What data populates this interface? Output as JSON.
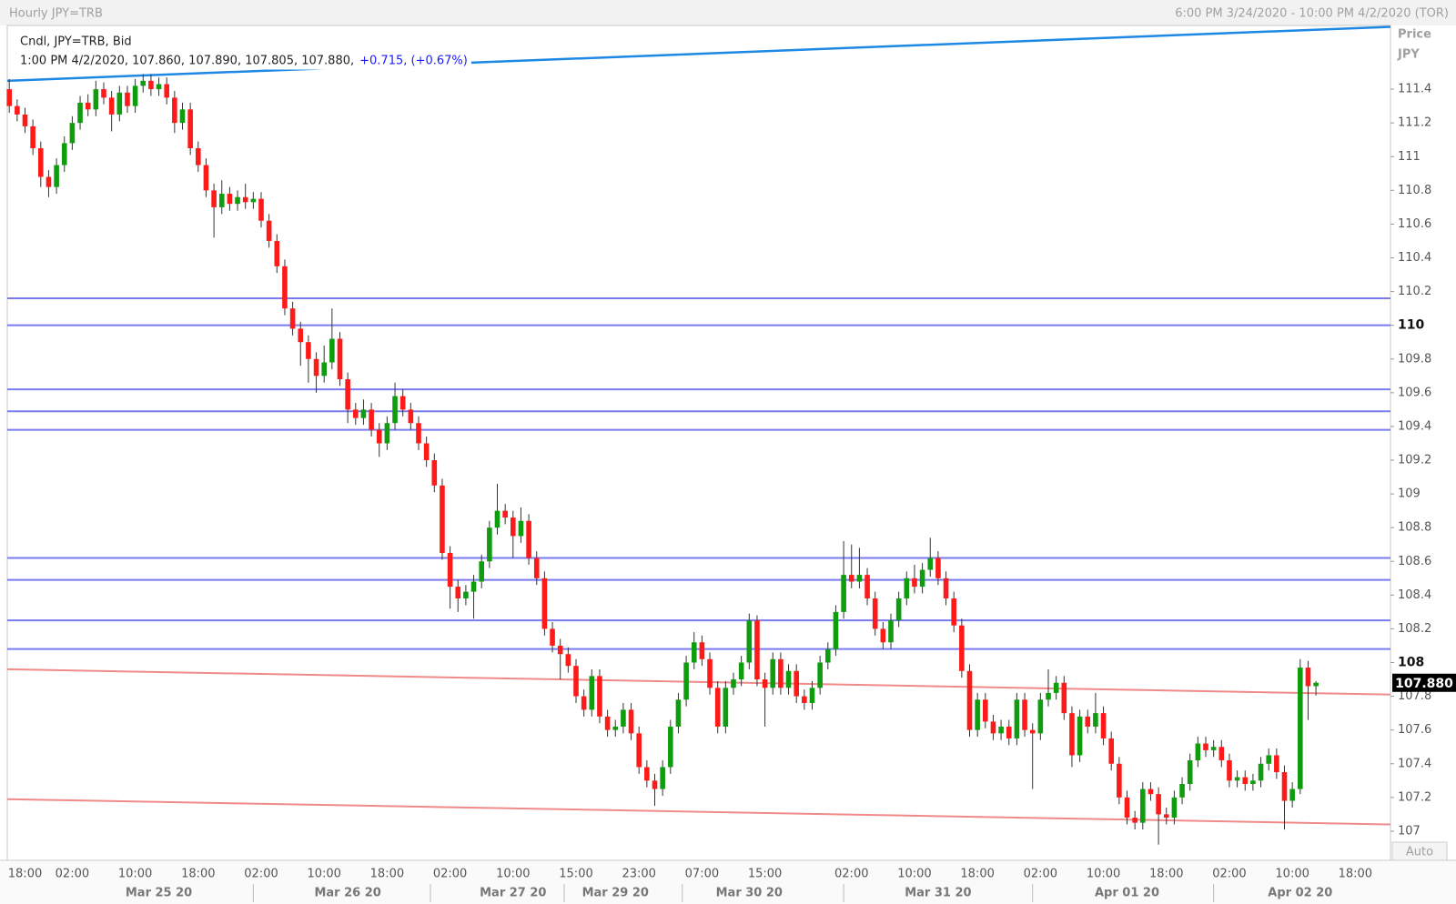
{
  "chart_data": {
    "type": "candlestick",
    "title": "Hourly JPY=TRB",
    "range_label": "6:00 PM 3/24/2020 - 10:00 PM 4/2/2020 (TOR)",
    "axis_label": "Price",
    "axis_unit": "JPY",
    "scale_mode": "Auto",
    "legend": {
      "line1": "Cndl, JPY=TRB, Bid",
      "line2": "1:00 PM 4/2/2020, 107.860, 107.890, 107.805, 107.880,",
      "change": "+0.715, (+0.67%)",
      "change_color": "#1a1aff"
    },
    "last_price": {
      "value": 107.88,
      "label": "107.880"
    },
    "up_color": "#0f9d0f",
    "down_color": "#ff1a1a",
    "ylim": [
      106.827,
      111.778
    ],
    "yticks": [
      107,
      107.2,
      107.4,
      107.6,
      107.8,
      108,
      108.2,
      108.4,
      108.6,
      108.8,
      109,
      109.2,
      109.4,
      109.6,
      109.8,
      110,
      110.2,
      110.4,
      110.6,
      110.8,
      111,
      111.2,
      111.4
    ],
    "levels": [
      110.16,
      110.0,
      109.62,
      109.49,
      109.38,
      108.62,
      108.49,
      108.25,
      108.08
    ],
    "level_color": "#7a7af0",
    "trend_lines": [
      {
        "color": "#1e88e5",
        "values": [
          111.45,
          111.77
        ]
      },
      {
        "color": "#f08a8a",
        "values": [
          107.96,
          107.81
        ]
      },
      {
        "color": "#f08a8a",
        "values": [
          107.19,
          107.04
        ]
      }
    ],
    "categories": [
      null,
      null,
      "18:00",
      null,
      null,
      null,
      null,
      null,
      "02:00",
      null,
      null,
      null,
      null,
      null,
      null,
      null,
      "10:00",
      null,
      null,
      null,
      null,
      null,
      null,
      null,
      "18:00",
      null,
      null,
      null,
      null,
      null,
      null,
      null,
      "02:00",
      null,
      null,
      null,
      null,
      null,
      null,
      null,
      "10:00",
      null,
      null,
      null,
      null,
      null,
      null,
      null,
      "18:00",
      null,
      null,
      null,
      null,
      null,
      null,
      null,
      "02:00",
      null,
      null,
      null,
      null,
      null,
      null,
      null,
      "10:00",
      null,
      null,
      null,
      null,
      null,
      null,
      null,
      "15:00",
      null,
      null,
      null,
      null,
      null,
      null,
      null,
      "23:00",
      null,
      null,
      null,
      null,
      null,
      null,
      null,
      "07:00",
      null,
      null,
      null,
      null,
      null,
      null,
      null,
      "15:00",
      null,
      null,
      null,
      null,
      null,
      null,
      null,
      null,
      null,
      null,
      "02:00",
      null,
      null,
      null,
      null,
      null,
      null,
      null,
      "10:00",
      null,
      null,
      null,
      null,
      null,
      null,
      null,
      "18:00",
      null,
      null,
      null,
      null,
      null,
      null,
      null,
      "02:00",
      null,
      null,
      null,
      null,
      null,
      null,
      null,
      "10:00",
      null,
      null,
      null,
      null,
      null,
      null,
      null,
      "18:00",
      null,
      null,
      null,
      null,
      null,
      null,
      null,
      "02:00",
      null,
      null,
      null,
      null,
      null,
      null,
      null,
      "10:00",
      null,
      null,
      null,
      null,
      null,
      null,
      null,
      "18:00",
      null,
      null,
      null,
      null
    ],
    "date_categories": [
      null,
      null,
      null,
      null,
      null,
      null,
      null,
      null,
      null,
      null,
      null,
      null,
      null,
      null,
      null,
      null,
      null,
      null,
      null,
      "Mar 25 20",
      null,
      null,
      null,
      null,
      null,
      null,
      null,
      null,
      null,
      null,
      null,
      null,
      null,
      null,
      null,
      null,
      null,
      null,
      null,
      null,
      null,
      null,
      null,
      "Mar 26 20",
      null,
      null,
      null,
      null,
      null,
      null,
      null,
      null,
      null,
      null,
      null,
      null,
      null,
      null,
      null,
      null,
      null,
      null,
      null,
      null,
      "Mar 27 20",
      null,
      null,
      null,
      null,
      null,
      null,
      null,
      null,
      null,
      null,
      null,
      null,
      "Mar 29 20",
      null,
      null,
      null,
      null,
      null,
      null,
      null,
      null,
      null,
      null,
      null,
      null,
      null,
      null,
      null,
      null,
      "Mar 30 20",
      null,
      null,
      null,
      null,
      null,
      null,
      null,
      null,
      null,
      null,
      null,
      null,
      null,
      null,
      null,
      null,
      null,
      null,
      null,
      null,
      null,
      null,
      null,
      "Mar 31 20",
      null,
      null,
      null,
      null,
      null,
      null,
      null,
      null,
      null,
      null,
      null,
      null,
      null,
      null,
      null,
      null,
      null,
      null,
      null,
      null,
      null,
      null,
      null,
      "Apr 01 20",
      null,
      null,
      null,
      null,
      null,
      null,
      null,
      null,
      null,
      null,
      null,
      null,
      null,
      null,
      null,
      null,
      null,
      null,
      null,
      null,
      null,
      "Apr 02 20",
      null,
      null,
      null,
      null,
      null,
      null,
      null,
      null,
      null,
      null,
      null
    ],
    "ohlc": [
      [
        111.4,
        111.46,
        111.26,
        111.3
      ],
      [
        111.3,
        111.34,
        111.21,
        111.25
      ],
      [
        111.25,
        111.29,
        111.14,
        111.18
      ],
      [
        111.18,
        111.22,
        111.01,
        111.05
      ],
      [
        111.05,
        111.09,
        110.82,
        110.88
      ],
      [
        110.88,
        110.92,
        110.76,
        110.82
      ],
      [
        110.82,
        110.99,
        110.78,
        110.95
      ],
      [
        110.95,
        111.12,
        110.91,
        111.08
      ],
      [
        111.08,
        111.24,
        111.04,
        111.2
      ],
      [
        111.2,
        111.36,
        111.16,
        111.32
      ],
      [
        111.32,
        111.37,
        111.24,
        111.28
      ],
      [
        111.28,
        111.45,
        111.24,
        111.4
      ],
      [
        111.4,
        111.44,
        111.31,
        111.35
      ],
      [
        111.35,
        111.39,
        111.15,
        111.25
      ],
      [
        111.25,
        111.42,
        111.21,
        111.38
      ],
      [
        111.38,
        111.42,
        111.26,
        111.3
      ],
      [
        111.3,
        111.46,
        111.26,
        111.42
      ],
      [
        111.42,
        111.49,
        111.38,
        111.45
      ],
      [
        111.45,
        111.49,
        111.36,
        111.4
      ],
      [
        111.4,
        111.47,
        111.36,
        111.43
      ],
      [
        111.43,
        111.47,
        111.31,
        111.35
      ],
      [
        111.35,
        111.39,
        111.14,
        111.2
      ],
      [
        111.2,
        111.32,
        111.16,
        111.28
      ],
      [
        111.28,
        111.32,
        111.01,
        111.05
      ],
      [
        111.05,
        111.09,
        110.91,
        110.95
      ],
      [
        110.95,
        110.99,
        110.76,
        110.8
      ],
      [
        110.8,
        110.84,
        110.52,
        110.7
      ],
      [
        110.7,
        110.86,
        110.66,
        110.78
      ],
      [
        110.78,
        110.82,
        110.68,
        110.72
      ],
      [
        110.72,
        110.8,
        110.68,
        110.76
      ],
      [
        110.76,
        110.84,
        110.69,
        110.73
      ],
      [
        110.73,
        110.79,
        110.69,
        110.75
      ],
      [
        110.75,
        110.79,
        110.58,
        110.62
      ],
      [
        110.62,
        110.66,
        110.46,
        110.5
      ],
      [
        110.5,
        110.54,
        110.31,
        110.35
      ],
      [
        110.35,
        110.39,
        110.06,
        110.1
      ],
      [
        110.1,
        110.14,
        109.94,
        109.98
      ],
      [
        109.98,
        110.02,
        109.76,
        109.9
      ],
      [
        109.9,
        109.94,
        109.66,
        109.8
      ],
      [
        109.8,
        109.84,
        109.6,
        109.7
      ],
      [
        109.7,
        109.88,
        109.66,
        109.78
      ],
      [
        109.78,
        110.1,
        109.74,
        109.92
      ],
      [
        109.92,
        109.96,
        109.64,
        109.68
      ],
      [
        109.68,
        109.72,
        109.42,
        109.5
      ],
      [
        109.5,
        109.54,
        109.41,
        109.45
      ],
      [
        109.45,
        109.56,
        109.41,
        109.5
      ],
      [
        109.5,
        109.54,
        109.34,
        109.38
      ],
      [
        109.38,
        109.42,
        109.22,
        109.3
      ],
      [
        109.3,
        109.46,
        109.26,
        109.42
      ],
      [
        109.42,
        109.66,
        109.38,
        109.58
      ],
      [
        109.58,
        109.62,
        109.46,
        109.5
      ],
      [
        109.5,
        109.54,
        109.38,
        109.42
      ],
      [
        109.42,
        109.46,
        109.26,
        109.3
      ],
      [
        109.3,
        109.34,
        109.16,
        109.2
      ],
      [
        109.2,
        109.24,
        109.01,
        109.05
      ],
      [
        109.05,
        109.09,
        108.61,
        108.65
      ],
      [
        108.65,
        108.69,
        108.32,
        108.45
      ],
      [
        108.45,
        108.49,
        108.3,
        108.38
      ],
      [
        108.38,
        108.46,
        108.34,
        108.42
      ],
      [
        108.42,
        108.52,
        108.26,
        108.48
      ],
      [
        108.48,
        108.64,
        108.44,
        108.6
      ],
      [
        108.6,
        108.84,
        108.56,
        108.8
      ],
      [
        108.8,
        109.06,
        108.76,
        108.9
      ],
      [
        108.9,
        108.94,
        108.82,
        108.86
      ],
      [
        108.86,
        108.9,
        108.62,
        108.75
      ],
      [
        108.75,
        108.92,
        108.71,
        108.84
      ],
      [
        108.84,
        108.88,
        108.58,
        108.62
      ],
      [
        108.62,
        108.66,
        108.46,
        108.5
      ],
      [
        108.5,
        108.54,
        108.16,
        108.2
      ],
      [
        108.2,
        108.24,
        108.06,
        108.1
      ],
      [
        108.1,
        108.14,
        107.9,
        108.05
      ],
      [
        108.05,
        108.09,
        107.94,
        107.98
      ],
      [
        107.98,
        108.02,
        107.76,
        107.8
      ],
      [
        107.8,
        107.84,
        107.68,
        107.72
      ],
      [
        107.72,
        107.96,
        107.68,
        107.92
      ],
      [
        107.92,
        107.96,
        107.64,
        107.68
      ],
      [
        107.68,
        107.72,
        107.56,
        107.6
      ],
      [
        107.6,
        107.66,
        107.56,
        107.62
      ],
      [
        107.62,
        107.76,
        107.58,
        107.72
      ],
      [
        107.72,
        107.76,
        107.54,
        107.58
      ],
      [
        107.58,
        107.62,
        107.34,
        107.38
      ],
      [
        107.38,
        107.42,
        107.26,
        107.3
      ],
      [
        107.3,
        107.34,
        107.15,
        107.25
      ],
      [
        107.25,
        107.42,
        107.21,
        107.38
      ],
      [
        107.38,
        107.66,
        107.34,
        107.62
      ],
      [
        107.62,
        107.82,
        107.58,
        107.78
      ],
      [
        107.78,
        108.04,
        107.74,
        108.0
      ],
      [
        108.0,
        108.18,
        107.96,
        108.12
      ],
      [
        108.12,
        108.16,
        107.98,
        108.02
      ],
      [
        108.02,
        108.06,
        107.81,
        107.85
      ],
      [
        107.85,
        107.89,
        107.58,
        107.62
      ],
      [
        107.62,
        107.89,
        107.58,
        107.85
      ],
      [
        107.85,
        107.94,
        107.81,
        107.9
      ],
      [
        107.9,
        108.04,
        107.86,
        108.0
      ],
      [
        108.0,
        108.29,
        107.96,
        108.25
      ],
      [
        108.25,
        108.28,
        107.86,
        107.9
      ],
      [
        107.9,
        107.94,
        107.62,
        107.85
      ],
      [
        107.85,
        108.06,
        107.81,
        108.02
      ],
      [
        108.02,
        108.06,
        107.81,
        107.85
      ],
      [
        107.85,
        107.99,
        107.81,
        107.95
      ],
      [
        107.95,
        107.99,
        107.76,
        107.8
      ],
      [
        107.8,
        107.84,
        107.72,
        107.76
      ],
      [
        107.76,
        107.89,
        107.72,
        107.85
      ],
      [
        107.85,
        108.04,
        107.81,
        108.0
      ],
      [
        108.0,
        108.12,
        107.96,
        108.08
      ],
      [
        108.08,
        108.34,
        108.04,
        108.3
      ],
      [
        108.3,
        108.72,
        108.26,
        108.52
      ],
      [
        108.52,
        108.7,
        108.44,
        108.48
      ],
      [
        108.48,
        108.68,
        108.44,
        108.52
      ],
      [
        108.52,
        108.56,
        108.34,
        108.38
      ],
      [
        108.38,
        108.42,
        108.16,
        108.2
      ],
      [
        108.2,
        108.24,
        108.08,
        108.12
      ],
      [
        108.12,
        108.29,
        108.08,
        108.25
      ],
      [
        108.25,
        108.42,
        108.21,
        108.38
      ],
      [
        108.38,
        108.54,
        108.34,
        108.5
      ],
      [
        108.5,
        108.58,
        108.41,
        108.45
      ],
      [
        108.45,
        108.59,
        108.41,
        108.55
      ],
      [
        108.55,
        108.74,
        108.51,
        108.62
      ],
      [
        108.62,
        108.66,
        108.46,
        108.5
      ],
      [
        108.5,
        108.54,
        108.34,
        108.38
      ],
      [
        108.38,
        108.42,
        108.18,
        108.22
      ],
      [
        108.22,
        108.26,
        107.91,
        107.95
      ],
      [
        107.95,
        107.99,
        107.56,
        107.6
      ],
      [
        107.6,
        107.82,
        107.56,
        107.78
      ],
      [
        107.78,
        107.82,
        107.61,
        107.65
      ],
      [
        107.65,
        107.69,
        107.54,
        107.58
      ],
      [
        107.58,
        107.66,
        107.54,
        107.62
      ],
      [
        107.62,
        107.66,
        107.51,
        107.55
      ],
      [
        107.55,
        107.82,
        107.51,
        107.78
      ],
      [
        107.78,
        107.82,
        107.56,
        107.6
      ],
      [
        107.6,
        107.64,
        107.25,
        107.58
      ],
      [
        107.58,
        107.82,
        107.54,
        107.78
      ],
      [
        107.78,
        107.96,
        107.74,
        107.82
      ],
      [
        107.82,
        107.92,
        107.78,
        107.88
      ],
      [
        107.88,
        107.92,
        107.66,
        107.7
      ],
      [
        107.7,
        107.74,
        107.38,
        107.45
      ],
      [
        107.45,
        107.72,
        107.41,
        107.68
      ],
      [
        107.68,
        107.72,
        107.58,
        107.62
      ],
      [
        107.62,
        107.82,
        107.58,
        107.7
      ],
      [
        107.7,
        107.74,
        107.51,
        107.55
      ],
      [
        107.55,
        107.59,
        107.36,
        107.4
      ],
      [
        107.4,
        107.44,
        107.16,
        107.2
      ],
      [
        107.2,
        107.24,
        107.04,
        107.08
      ],
      [
        107.08,
        107.12,
        107.01,
        107.05
      ],
      [
        107.05,
        107.29,
        107.01,
        107.25
      ],
      [
        107.25,
        107.29,
        107.18,
        107.22
      ],
      [
        107.22,
        107.26,
        106.92,
        107.1
      ],
      [
        107.1,
        107.14,
        107.04,
        107.08
      ],
      [
        107.08,
        107.24,
        107.04,
        107.2
      ],
      [
        107.2,
        107.32,
        107.16,
        107.28
      ],
      [
        107.28,
        107.46,
        107.24,
        107.42
      ],
      [
        107.42,
        107.56,
        107.38,
        107.52
      ],
      [
        107.52,
        107.56,
        107.44,
        107.48
      ],
      [
        107.48,
        107.54,
        107.44,
        107.5
      ],
      [
        107.5,
        107.54,
        107.38,
        107.42
      ],
      [
        107.42,
        107.46,
        107.26,
        107.3
      ],
      [
        107.3,
        107.36,
        107.26,
        107.32
      ],
      [
        107.32,
        107.36,
        107.24,
        107.28
      ],
      [
        107.28,
        107.34,
        107.24,
        107.3
      ],
      [
        107.3,
        107.44,
        107.26,
        107.4
      ],
      [
        107.4,
        107.49,
        107.36,
        107.45
      ],
      [
        107.45,
        107.49,
        107.31,
        107.35
      ],
      [
        107.35,
        107.39,
        107.01,
        107.18
      ],
      [
        107.18,
        107.29,
        107.14,
        107.25
      ],
      [
        107.25,
        108.02,
        107.22,
        107.97
      ],
      [
        107.97,
        108.01,
        107.66,
        107.86
      ],
      [
        107.86,
        107.89,
        107.805,
        107.88
      ],
      null,
      null,
      null,
      null,
      null,
      null,
      null,
      null,
      null
    ]
  }
}
